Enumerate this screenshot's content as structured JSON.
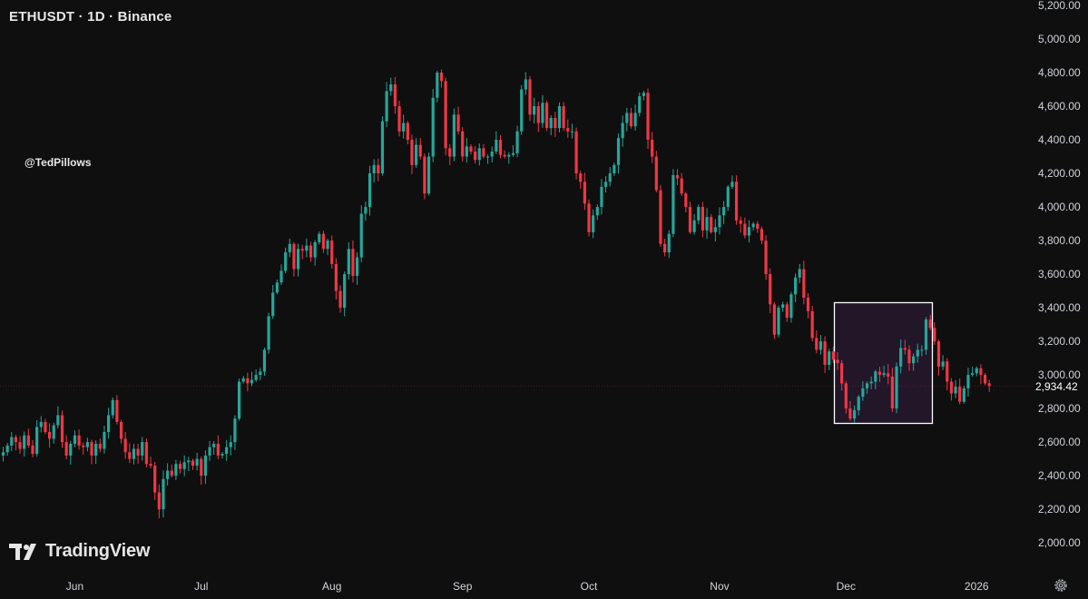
{
  "header": {
    "title": "ETHUSDT · 1D · Binance"
  },
  "watermark": "@TedPillows",
  "logo": {
    "text": "TradingView",
    "icon": "tradingview-logo-icon"
  },
  "price_axis": {
    "labels": [
      "5,200.00",
      "5,000.00",
      "4,800.00",
      "4,600.00",
      "4,400.00",
      "4,200.00",
      "4,000.00",
      "3,800.00",
      "3,600.00",
      "3,400.00",
      "3,200.00",
      "3,000.00",
      "2,800.00",
      "2,600.00",
      "2,400.00",
      "2,200.00",
      "2,000.00"
    ],
    "current_price": "2,934.42"
  },
  "time_axis": {
    "labels": [
      "Jun",
      "Jul",
      "Aug",
      "Sep",
      "Oct",
      "Nov",
      "Dec",
      "2026"
    ]
  },
  "settings": {
    "icon": "gear-icon"
  },
  "colors": {
    "up": "#26a69a",
    "down": "#f23645",
    "background": "#0f0f0f",
    "highlight_fill": "#2a1a33",
    "highlight_stroke": "#ffffff"
  },
  "chart_data": {
    "type": "candlestick",
    "title": "ETHUSDT · 1D · Binance",
    "ylim": [
      1900,
      5250
    ],
    "y_ticks": [
      5200,
      5000,
      4800,
      4600,
      4400,
      4200,
      4000,
      3800,
      3600,
      3400,
      3200,
      3000,
      2800,
      2600,
      2400,
      2200,
      2000
    ],
    "x_ticks": [
      {
        "label": "Jun",
        "date": "2025-06-01"
      },
      {
        "label": "Jul",
        "date": "2025-07-01"
      },
      {
        "label": "Aug",
        "date": "2025-08-01"
      },
      {
        "label": "Sep",
        "date": "2025-09-01"
      },
      {
        "label": "Oct",
        "date": "2025-10-01"
      },
      {
        "label": "Nov",
        "date": "2025-11-01"
      },
      {
        "label": "Dec",
        "date": "2025-12-01"
      },
      {
        "label": "2026",
        "date": "2026-01-01"
      }
    ],
    "start_date": "2025-05-15",
    "closes": [
      2540,
      2580,
      2630,
      2600,
      2560,
      2640,
      2580,
      2530,
      2690,
      2720,
      2660,
      2620,
      2700,
      2760,
      2600,
      2520,
      2590,
      2640,
      2580,
      2570,
      2600,
      2520,
      2590,
      2560,
      2660,
      2760,
      2850,
      2720,
      2620,
      2540,
      2500,
      2560,
      2520,
      2600,
      2470,
      2460,
      2300,
      2200,
      2380,
      2430,
      2400,
      2470,
      2440,
      2480,
      2490,
      2460,
      2500,
      2400,
      2520,
      2570,
      2590,
      2520,
      2530,
      2570,
      2600,
      2740,
      2960,
      2980,
      2950,
      2970,
      3000,
      3020,
      3150,
      3350,
      3490,
      3550,
      3620,
      3730,
      3780,
      3630,
      3750,
      3740,
      3770,
      3700,
      3790,
      3840,
      3750,
      3800,
      3660,
      3500,
      3400,
      3600,
      3750,
      3590,
      3700,
      3960,
      4000,
      4200,
      4250,
      4200,
      4510,
      4690,
      4730,
      4600,
      4450,
      4500,
      4400,
      4250,
      4370,
      4300,
      4080,
      4300,
      4650,
      4800,
      4750,
      4350,
      4300,
      4550,
      4450,
      4300,
      4360,
      4330,
      4280,
      4350,
      4300,
      4300,
      4330,
      4400,
      4310,
      4300,
      4310,
      4320,
      4450,
      4700,
      4760,
      4550,
      4600,
      4500,
      4620,
      4470,
      4530,
      4470,
      4600,
      4470,
      4450,
      4450,
      4200,
      4150,
      4020,
      3850,
      3950,
      4000,
      4120,
      4150,
      4200,
      4250,
      4410,
      4500,
      4560,
      4480,
      4560,
      4660,
      4680,
      4400,
      4300,
      4100,
      3780,
      3730,
      3840,
      4190,
      4170,
      4080,
      4000,
      3850,
      3920,
      4000,
      3860,
      3940,
      3850,
      3880,
      3950,
      4000,
      4120,
      4150,
      3920,
      3900,
      3830,
      3880,
      3900,
      3870,
      3800,
      3600,
      3420,
      3240,
      3400,
      3420,
      3340,
      3480,
      3580,
      3630,
      3460,
      3380,
      3220,
      3150,
      3200,
      3060,
      3140,
      3090,
      3070,
      2950,
      2800,
      2740,
      2790,
      2870,
      2920,
      2950,
      2960,
      3020,
      3000,
      3010,
      2990,
      2800,
      3050,
      3160,
      3150,
      3070,
      3110,
      3150,
      3150,
      3330,
      3280,
      3200,
      3050,
      3080,
      2960,
      2890,
      2930,
      2840,
      2920,
      3000,
      3010,
      3040,
      3000,
      2950,
      2934
    ]
  }
}
